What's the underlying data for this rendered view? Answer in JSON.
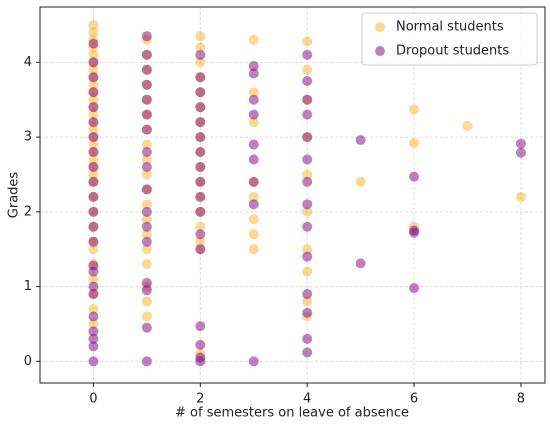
{
  "chart_data": {
    "type": "scatter",
    "xlabel": "# of semesters on leave of absence",
    "ylabel": "Grades",
    "xlim": [
      -1,
      8.45
    ],
    "ylim": [
      -0.29,
      4.74
    ],
    "xticks": [
      0,
      2,
      4,
      6,
      8
    ],
    "yticks": [
      0,
      1,
      2,
      3,
      4
    ],
    "grid": true,
    "legend": "upper right",
    "series": [
      {
        "name": "Normal students",
        "color": "#f5b325",
        "x": [
          0,
          0,
          0,
          0,
          0,
          0,
          0,
          0,
          0,
          0,
          0,
          0,
          0,
          0,
          0,
          0,
          0,
          0,
          0,
          0,
          0,
          0,
          0,
          0,
          0,
          0,
          0,
          0,
          0,
          0,
          0,
          0,
          1,
          1,
          1,
          1,
          1,
          1,
          1,
          1,
          1,
          1,
          1,
          1,
          1,
          1,
          1,
          1,
          1,
          1,
          1,
          2,
          2,
          2,
          2,
          2,
          2,
          2,
          2,
          2,
          2,
          2,
          2,
          2,
          2,
          2,
          2,
          2,
          3,
          3,
          3,
          3,
          3,
          3,
          3,
          3,
          4,
          4,
          4,
          4,
          4,
          4,
          4,
          4,
          4,
          4,
          5,
          6,
          6,
          6,
          7,
          8
        ],
        "y": [
          4.5,
          4.4,
          4.3,
          4.2,
          4.1,
          4.0,
          3.9,
          3.8,
          3.7,
          3.6,
          3.5,
          3.4,
          3.3,
          3.2,
          3.1,
          3.0,
          2.9,
          2.8,
          2.7,
          2.6,
          2.5,
          2.4,
          2.2,
          2.0,
          1.8,
          1.6,
          1.5,
          1.3,
          1.1,
          0.9,
          0.7,
          0.5,
          4.3,
          4.1,
          3.9,
          3.7,
          3.5,
          3.3,
          3.1,
          2.9,
          2.7,
          2.5,
          2.3,
          2.1,
          1.9,
          1.7,
          1.5,
          1.3,
          1.0,
          0.8,
          0.6,
          4.35,
          4.2,
          4.0,
          3.8,
          3.6,
          3.4,
          3.2,
          3.0,
          2.8,
          2.6,
          2.4,
          2.2,
          2.0,
          1.8,
          1.6,
          1.5,
          0.1,
          4.3,
          3.6,
          3.2,
          2.4,
          2.2,
          1.9,
          1.7,
          1.5,
          4.28,
          3.9,
          3.5,
          3.0,
          2.5,
          2.0,
          1.5,
          1.2,
          0.8,
          0.6,
          2.4,
          3.37,
          2.92,
          1.8,
          3.15,
          2.2
        ]
      },
      {
        "name": "Dropout students",
        "color": "#800080",
        "x": [
          0,
          0,
          0,
          0,
          0,
          0,
          0,
          0,
          0,
          0,
          0,
          0,
          0,
          0,
          0,
          0,
          0,
          0,
          0,
          0,
          0,
          0,
          0,
          1,
          1,
          1,
          1,
          1,
          1,
          1,
          1,
          1,
          1,
          1,
          1,
          1,
          1,
          1,
          1,
          1,
          2,
          2,
          2,
          2,
          2,
          2,
          2,
          2,
          2,
          2,
          2,
          2,
          2,
          2,
          2,
          2,
          2,
          3,
          3,
          3,
          3,
          3,
          3,
          3,
          3,
          3,
          4,
          4,
          4,
          4,
          4,
          4,
          4,
          4,
          4,
          4,
          4,
          4,
          4,
          4,
          5,
          5,
          6,
          6,
          6,
          6,
          8,
          8
        ],
        "y": [
          4.25,
          4.0,
          3.8,
          3.6,
          3.4,
          3.2,
          3.0,
          2.8,
          2.6,
          2.4,
          2.2,
          2.0,
          1.8,
          1.6,
          1.28,
          1.2,
          1.0,
          0.9,
          0.6,
          0.4,
          0.3,
          0.2,
          0,
          4.35,
          4.1,
          3.9,
          3.7,
          3.5,
          3.3,
          3.1,
          2.8,
          2.6,
          2.3,
          2.0,
          1.8,
          1.6,
          1.05,
          0.95,
          0.45,
          0,
          4.1,
          3.8,
          3.6,
          3.4,
          3.2,
          3.0,
          2.8,
          2.6,
          2.4,
          2.2,
          2.0,
          1.7,
          1.5,
          0.47,
          0.22,
          0.05,
          0,
          3.95,
          3.85,
          3.5,
          3.3,
          2.9,
          2.7,
          2.4,
          2.1,
          0,
          4.1,
          3.75,
          3.5,
          3.3,
          3.0,
          2.7,
          2.4,
          2.1,
          1.8,
          1.4,
          0.9,
          0.65,
          0.3,
          0.12,
          2.96,
          1.31,
          2.47,
          1.75,
          1.72,
          0.98,
          2.91,
          2.79
        ]
      }
    ]
  }
}
